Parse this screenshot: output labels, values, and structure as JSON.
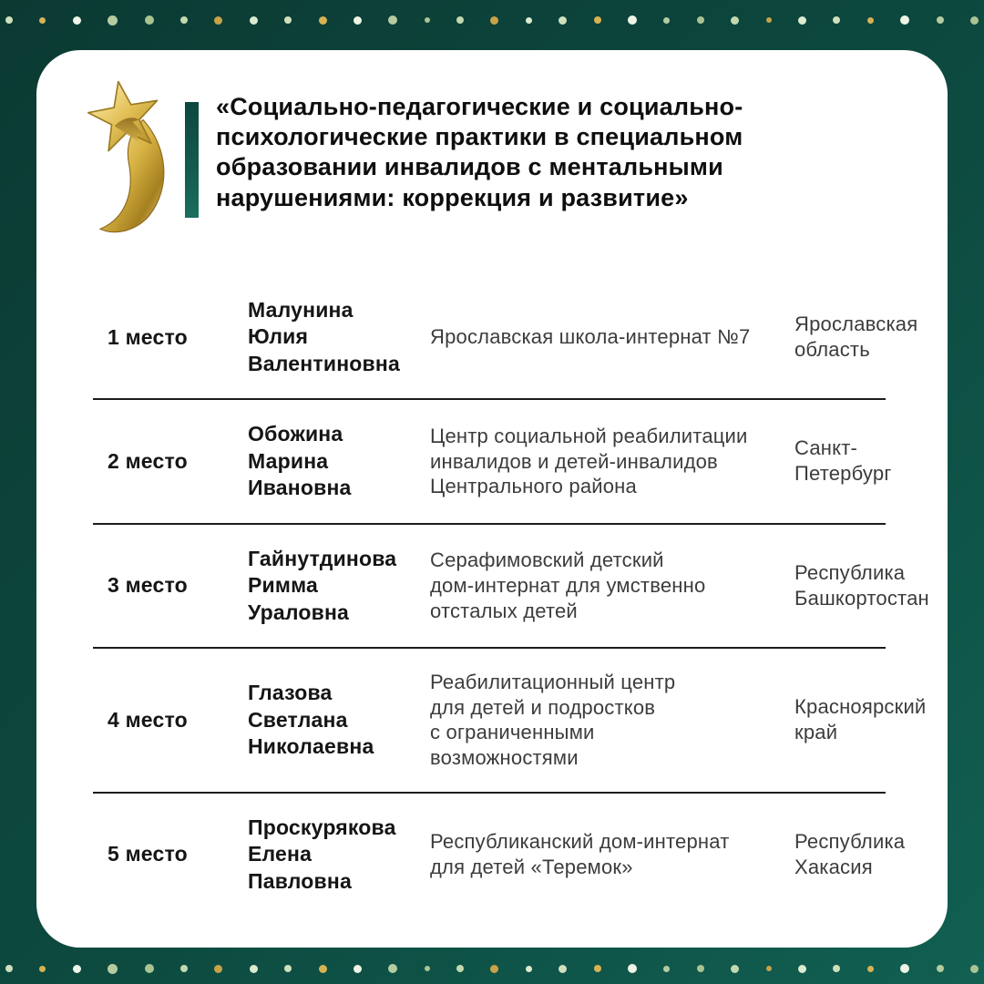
{
  "page": {
    "bg_gradient_start": "#0b3a33",
    "bg_gradient_end": "#116052",
    "card_color": "#ffffff"
  },
  "decor": {
    "dot_count": 29,
    "dot_colors": [
      "#cfe0bd",
      "#b5cba0",
      "#c8a34a",
      "#d6b254",
      "#a9c492",
      "#dcead0",
      "#eef5e6",
      "#c3d8b0"
    ],
    "dot_sizes": [
      8,
      7,
      9,
      11,
      10,
      8,
      9,
      9,
      8,
      9,
      9,
      10,
      6,
      8,
      9,
      7,
      9,
      8,
      10,
      7,
      8,
      9,
      6,
      9,
      8,
      7,
      10,
      8,
      9
    ]
  },
  "header": {
    "trophy_icon": "gold-star-trophy",
    "accent_color": "#145c50",
    "title": "«Социально-педагогические и социально-\nпсихологические практики в специальном\nобразовании инвалидов с ментальными\nнарушениями: коррекция и развитие»"
  },
  "table": {
    "rows": [
      {
        "place": "1 место",
        "name": "Малунина\nЮлия\nВалентиновна",
        "institution": "Ярославская школа-интернат №7",
        "region": "Ярославская\nобласть"
      },
      {
        "place": "2 место",
        "name": "Обожина\nМарина\nИвановна",
        "institution": "Центр социальной реабилитации\nинвалидов и детей-инвалидов\nЦентрального района",
        "region": "Санкт-\nПетербург"
      },
      {
        "place": "3 место",
        "name": "Гайнутдинова\nРимма\nУраловна",
        "institution": "Серафимовский детский\nдом-интернат для умственно\nотсталых детей",
        "region": "Республика\nБашкортостан"
      },
      {
        "place": "4 место",
        "name": "Глазова\nСветлана\nНиколаевна",
        "institution": "Реабилитационный центр\nдля детей и подростков\nс ограниченными\nвозможностями",
        "region": "Красноярский\nкрай"
      },
      {
        "place": "5 место",
        "name": "Проскурякова\nЕлена\nПавловна",
        "institution": "Республиканский дом-интернат\nдля детей «Теремок»",
        "region": "Республика\nХакасия"
      }
    ]
  }
}
